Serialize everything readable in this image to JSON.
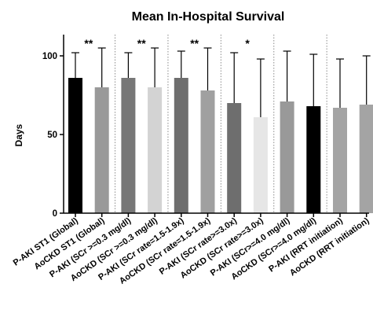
{
  "chart_data": {
    "type": "bar",
    "title": "Mean In-Hospital Survival",
    "ylabel": "Days",
    "xlabel": "",
    "ylim": [
      0,
      115
    ],
    "yticks": [
      0,
      50,
      100
    ],
    "grid": false,
    "categories": [
      "P-AKI ST1 (Global)",
      "AoCKD ST1 (Global)",
      "P-AKI (SCr >=0.3 mg/dl)",
      "AoCKD (SCr >=0.3 mg/dl)",
      "P-AKI (SCr rate=1.5-1.9x)",
      "AoCKD (SCr rate=1.5-1.9x)",
      "P-AKI (SCr rate>=3.0x)",
      "AoCKD (SCr rate>=3.0x)",
      "P-AKI (SCr>=4.0 mg/dl)",
      "AoCKD (SCr>=4.0 mg/dl)",
      "P-AKI (RRT initiation)",
      "AoCKD (RRT initiation)"
    ],
    "values": [
      86,
      80,
      86,
      80,
      86,
      78,
      70,
      61,
      71,
      68,
      67,
      69
    ],
    "error_upper": [
      102,
      105,
      102,
      105,
      103,
      105,
      102,
      98,
      103,
      101,
      98,
      100
    ],
    "bar_colors": [
      "#000000",
      "#999999",
      "#777777",
      "#d3d3d3",
      "#6e6e6e",
      "#a0a0a0",
      "#6e6e6e",
      "#e6e6e6",
      "#999999",
      "#000000",
      "#a4a4a4",
      "#a4a4a4"
    ],
    "significance": [
      {
        "group": 0,
        "label": "**"
      },
      {
        "group": 1,
        "label": "**"
      },
      {
        "group": 2,
        "label": "**"
      },
      {
        "group": 3,
        "label": "*"
      }
    ]
  }
}
